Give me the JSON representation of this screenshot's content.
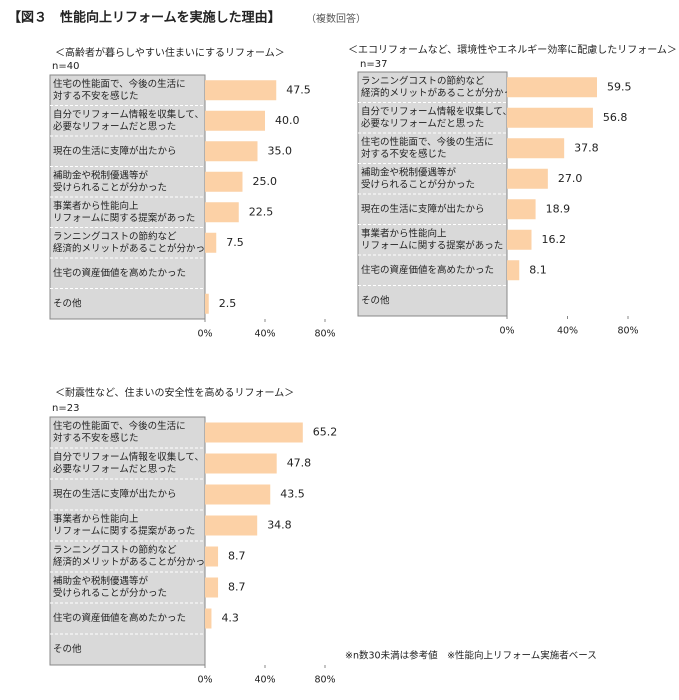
{
  "title": "【図３　性能向上リフォームを実施した理由】",
  "subtitle": "（複数回答）",
  "note": "※n数30未満は参考値　※性能向上リフォーム実施者ベース",
  "chart_data": [
    {
      "type": "bar",
      "orientation": "horizontal",
      "title": "＜高齢者が暮らしやすい住まいにするリフォーム＞",
      "n_label": "n=40",
      "categories": [
        [
          "住宅の性能面で、今後の生活に",
          "対する不安を感じた"
        ],
        [
          "自分でリフォーム情報を収集して、",
          "必要なリフォームだと思った"
        ],
        [
          "現在の生活に支障が出たから"
        ],
        [
          "補助金や税制優遇等が",
          "受けられることが分かった"
        ],
        [
          "事業者から性能向上",
          "リフォームに関する提案があった"
        ],
        [
          "ランニングコストの節約など",
          "経済的メリットがあることが分かった"
        ],
        [
          "住宅の資産価値を高めたかった"
        ],
        [
          "その他"
        ]
      ],
      "values": [
        47.5,
        40,
        35,
        25,
        22.5,
        7.5,
        null,
        2.5
      ],
      "value_labels": [
        "47.5",
        "40.0",
        "35.0",
        "25.0",
        "22.5",
        "7.5",
        null,
        "2.5"
      ],
      "color": "#fcd1a6",
      "xlim": [
        0,
        80
      ],
      "xticks": [
        {
          "value": 0,
          "label": "0%"
        },
        {
          "value": 40,
          "label": "40%"
        },
        {
          "value": 80,
          "label": "80%"
        }
      ]
    },
    {
      "type": "bar",
      "orientation": "horizontal",
      "title": "＜エコリフォームなど、環境性やエネルギー効率に配慮したリフォーム＞",
      "n_label": "n=37",
      "categories": [
        [
          "ランニングコストの節約など",
          "経済的メリットがあることが分かった"
        ],
        [
          "自分でリフォーム情報を収集して、",
          "必要なリフォームだと思った"
        ],
        [
          "住宅の性能面で、今後の生活に",
          "対する不安を感じた"
        ],
        [
          "補助金や税制優遇等が",
          "受けられることが分かった"
        ],
        [
          "現在の生活に支障が出たから"
        ],
        [
          "事業者から性能向上",
          "リフォームに関する提案があった"
        ],
        [
          "住宅の資産価値を高めたかった"
        ],
        [
          "その他"
        ]
      ],
      "values": [
        59.5,
        56.8,
        37.8,
        27,
        18.9,
        16.2,
        8.1,
        null
      ],
      "value_labels": [
        "59.5",
        "56.8",
        "37.8",
        "27.0",
        "18.9",
        "16.2",
        "8.1",
        null
      ],
      "color": "#fcd1a6",
      "xlim": [
        0,
        80
      ],
      "xticks": [
        {
          "value": 0,
          "label": "0%"
        },
        {
          "value": 40,
          "label": "40%"
        },
        {
          "value": 80,
          "label": "80%"
        }
      ]
    },
    {
      "type": "bar",
      "orientation": "horizontal",
      "title": "＜耐震性など、住まいの安全性を高めるリフォーム＞",
      "n_label": "n=23",
      "categories": [
        [
          "住宅の性能面で、今後の生活に",
          "対する不安を感じた"
        ],
        [
          "自分でリフォーム情報を収集して、",
          "必要なリフォームだと思った"
        ],
        [
          "現在の生活に支障が出たから"
        ],
        [
          "事業者から性能向上",
          "リフォームに関する提案があった"
        ],
        [
          "ランニングコストの節約など",
          "経済的メリットがあることが分かった"
        ],
        [
          "補助金や税制優遇等が",
          "受けられることが分かった"
        ],
        [
          "住宅の資産価値を高めたかった"
        ],
        [
          "その他"
        ]
      ],
      "values": [
        65.2,
        47.8,
        43.5,
        34.8,
        8.7,
        8.7,
        4.3,
        null
      ],
      "value_labels": [
        "65.2",
        "47.8",
        "43.5",
        "34.8",
        "8.7",
        "8.7",
        "4.3",
        null
      ],
      "color": "#fcd1a6",
      "xlim": [
        0,
        80
      ],
      "xticks": [
        {
          "value": 0,
          "label": "0%"
        },
        {
          "value": 40,
          "label": "40%"
        },
        {
          "value": 80,
          "label": "80%"
        }
      ]
    }
  ]
}
